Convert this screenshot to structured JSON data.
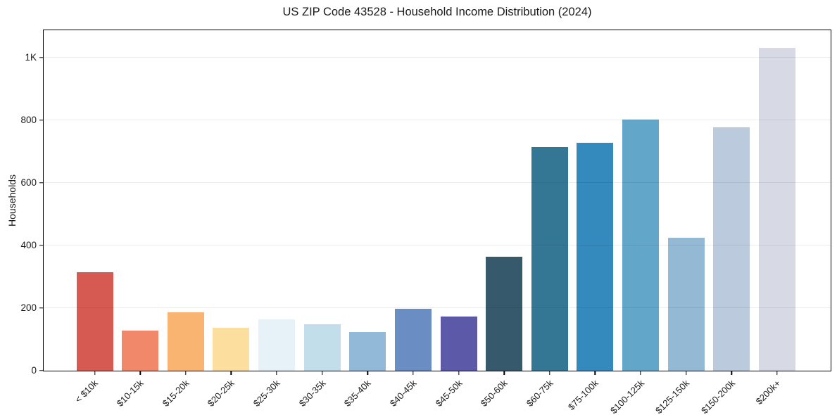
{
  "chart_data": {
    "type": "bar",
    "title": "US ZIP Code 43528 - Household Income Distribution (2024)",
    "xlabel": "",
    "ylabel": "Households",
    "categories": [
      "< $10k",
      "$10-15k",
      "$15-20k",
      "$20-25k",
      "$25-30k",
      "$30-35k",
      "$35-40k",
      "$40-45k",
      "$45-50k",
      "$50-60k",
      "$60-75k",
      "$75-100k",
      "$100-125k",
      "$125-150k",
      "$150-200k",
      "$200k+"
    ],
    "values": [
      315,
      129,
      187,
      136,
      164,
      149,
      124,
      198,
      172,
      363,
      714,
      727,
      802,
      424,
      777,
      1031
    ],
    "bar_colors": [
      "#d65a52",
      "#f2886a",
      "#f9b471",
      "#fcdf9e",
      "#e7f2f8",
      "#c2deeb",
      "#92bad8",
      "#6a8dc3",
      "#5c59a8",
      "#36596b",
      "#347795",
      "#3489bd",
      "#62a6c9",
      "#93b9d5",
      "#bccade",
      "#d7d9e5"
    ],
    "ylim": [
      0,
      1087
    ],
    "yticks": [
      {
        "value": 0,
        "label": "0"
      },
      {
        "value": 200,
        "label": "200"
      },
      {
        "value": 400,
        "label": "400"
      },
      {
        "value": 600,
        "label": "600"
      },
      {
        "value": 800,
        "label": "800"
      },
      {
        "value": 1000,
        "label": "1K"
      }
    ],
    "grid": "horizontal",
    "legend": "none",
    "background_color": "#ffffff",
    "grid_color": "#e8e8e8",
    "axis_color": "#000000",
    "text_color": "#1a1a1a"
  }
}
